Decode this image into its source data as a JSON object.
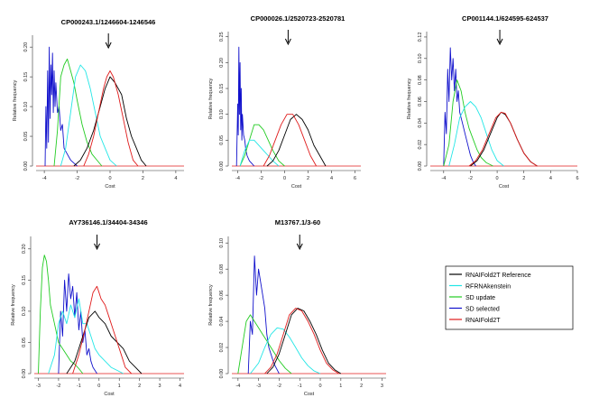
{
  "figure": {
    "legend_title": ""
  },
  "legend": [
    {
      "label": "RNAIFold2T Reference",
      "color": "#000000"
    },
    {
      "label": "RFRNAkenstein",
      "color": "#22e6e6"
    },
    {
      "label": "SD update",
      "color": "#22cc22"
    },
    {
      "label": "SD selected",
      "color": "#1111cc"
    },
    {
      "label": "RNAIFold2T",
      "color": "#e01b1b"
    }
  ],
  "chart_data": [
    {
      "type": "line",
      "title": "CP000243.1/1246604-1246546",
      "xlabel": "Cost",
      "ylabel": "Relative frequency",
      "xlim": [
        -4.5,
        4.5
      ],
      "ylim": [
        0,
        0.22
      ],
      "xticks": [
        -4,
        -2,
        0,
        2,
        4
      ],
      "yticks": [
        0.0,
        0.05,
        0.1,
        0.15,
        0.2
      ],
      "xtick_labels": [
        "-4",
        "-2",
        "0",
        "2",
        "4"
      ],
      "ytick_labels": [
        "0.00",
        "0.05",
        "0.10",
        "0.15",
        "0.20"
      ],
      "arrow_x": -0.1,
      "series": [
        {
          "name": "RNAIFold2T Reference",
          "x": [
            -2.2,
            -1.8,
            -1.4,
            -1.0,
            -0.6,
            -0.3,
            0.0,
            0.3,
            0.7,
            1.0,
            1.3,
            1.6,
            1.9,
            2.2
          ],
          "y": [
            0,
            0.01,
            0.03,
            0.06,
            0.1,
            0.13,
            0.15,
            0.14,
            0.12,
            0.08,
            0.05,
            0.03,
            0.01,
            0
          ]
        },
        {
          "name": "RFRNAkenstein",
          "x": [
            -3.0,
            -2.7,
            -2.4,
            -2.1,
            -1.8,
            -1.5,
            -1.2,
            -0.9,
            -0.6,
            -0.3,
            0.0,
            0.4
          ],
          "y": [
            0,
            0.03,
            0.09,
            0.15,
            0.17,
            0.16,
            0.13,
            0.09,
            0.05,
            0.03,
            0.01,
            0
          ]
        },
        {
          "name": "SD update",
          "x": [
            -3.4,
            -3.2,
            -3.0,
            -2.8,
            -2.6,
            -2.4,
            -2.2,
            -2.0,
            -1.7,
            -1.4,
            -1.1,
            -0.8,
            -0.5
          ],
          "y": [
            0,
            0.06,
            0.15,
            0.17,
            0.18,
            0.16,
            0.14,
            0.11,
            0.07,
            0.04,
            0.02,
            0.01,
            0
          ]
        },
        {
          "name": "SD selected",
          "x": [
            -3.95,
            -3.9,
            -3.85,
            -3.8,
            -3.75,
            -3.7,
            -3.65,
            -3.6,
            -3.55,
            -3.5,
            -3.45,
            -3.4,
            -3.35,
            -3.3,
            -3.2,
            -3.1,
            -3.0,
            -2.9,
            -2.8,
            -2.6,
            -2.4,
            -2.2,
            -2.0
          ],
          "y": [
            0,
            0.1,
            0.03,
            0.16,
            0.04,
            0.2,
            0.08,
            0.17,
            0.12,
            0.19,
            0.09,
            0.16,
            0.1,
            0.14,
            0.09,
            0.1,
            0.06,
            0.07,
            0.03,
            0.02,
            0.01,
            0.005,
            0
          ]
        },
        {
          "name": "RNAIFold2T",
          "x": [
            -1.6,
            -1.3,
            -1.0,
            -0.7,
            -0.4,
            -0.2,
            0.0,
            0.2,
            0.5,
            0.8,
            1.1,
            1.4,
            1.7
          ],
          "y": [
            0,
            0.02,
            0.05,
            0.09,
            0.13,
            0.15,
            0.16,
            0.15,
            0.12,
            0.08,
            0.04,
            0.01,
            0
          ]
        }
      ]
    },
    {
      "type": "line",
      "title": "CP000026.1/2520723-2520781",
      "xlabel": "Cost",
      "ylabel": "Relative frequency",
      "xlim": [
        -4.5,
        6.5
      ],
      "ylim": [
        0,
        0.26
      ],
      "xticks": [
        -4,
        -2,
        0,
        2,
        4,
        6
      ],
      "yticks": [
        0.0,
        0.05,
        0.1,
        0.15,
        0.2,
        0.25
      ],
      "xtick_labels": [
        "-4",
        "-2",
        "0",
        "2",
        "4",
        "6"
      ],
      "ytick_labels": [
        "0.00",
        "0.05",
        "0.10",
        "0.15",
        "0.20",
        "0.25"
      ],
      "arrow_x": 0.3,
      "series": [
        {
          "name": "RNAIFold2T Reference",
          "x": [
            -1.5,
            -1.0,
            -0.5,
            0.0,
            0.5,
            1.0,
            1.5,
            2.0,
            2.5,
            3.0,
            3.5
          ],
          "y": [
            0,
            0.01,
            0.03,
            0.06,
            0.09,
            0.1,
            0.09,
            0.07,
            0.04,
            0.02,
            0
          ]
        },
        {
          "name": "RFRNAkenstein",
          "x": [
            -3.8,
            -3.4,
            -3.0,
            -2.6,
            -2.2,
            -1.8,
            -1.4,
            -1.0,
            -0.5
          ],
          "y": [
            0,
            0.03,
            0.05,
            0.05,
            0.04,
            0.03,
            0.02,
            0.01,
            0
          ]
        },
        {
          "name": "SD update",
          "x": [
            -3.8,
            -3.4,
            -3.0,
            -2.6,
            -2.2,
            -1.8,
            -1.4,
            -1.0,
            -0.5,
            0.0
          ],
          "y": [
            0,
            0.02,
            0.05,
            0.08,
            0.08,
            0.07,
            0.05,
            0.03,
            0.01,
            0
          ]
        },
        {
          "name": "SD selected",
          "x": [
            -4.1,
            -4.0,
            -3.95,
            -3.9,
            -3.85,
            -3.8,
            -3.75,
            -3.7,
            -3.65,
            -3.6,
            -3.5,
            -3.4,
            -3.3,
            -3.2,
            -3.0,
            -2.8,
            -2.6
          ],
          "y": [
            0,
            0.12,
            0.06,
            0.23,
            0.1,
            0.2,
            0.07,
            0.15,
            0.05,
            0.1,
            0.06,
            0.05,
            0.03,
            0.02,
            0.01,
            0.005,
            0
          ]
        },
        {
          "name": "RNAIFold2T",
          "x": [
            -1.8,
            -1.3,
            -0.8,
            -0.3,
            0.2,
            0.7,
            1.2,
            1.7,
            2.2,
            2.7
          ],
          "y": [
            0,
            0.02,
            0.05,
            0.08,
            0.1,
            0.1,
            0.08,
            0.05,
            0.02,
            0
          ]
        }
      ]
    },
    {
      "type": "line",
      "title": "CP001144.1/624595-624537",
      "xlabel": "Cost",
      "ylabel": "Relative frequency",
      "xlim": [
        -5,
        6
      ],
      "ylim": [
        0,
        0.125
      ],
      "xticks": [
        -4,
        -2,
        0,
        2,
        4,
        6
      ],
      "yticks": [
        0.0,
        0.02,
        0.04,
        0.06,
        0.08,
        0.1,
        0.12
      ],
      "xtick_labels": [
        "-4",
        "-2",
        "0",
        "2",
        "4",
        "6"
      ],
      "ytick_labels": [
        "0.00",
        "0.02",
        "0.04",
        "0.06",
        "0.08",
        "0.10",
        "0.12"
      ],
      "arrow_x": 0.2,
      "series": [
        {
          "name": "RNAIFold2T Reference",
          "x": [
            -2.0,
            -1.5,
            -1.0,
            -0.5,
            0.0,
            0.3,
            0.6,
            1.0,
            1.5,
            2.0,
            2.5,
            3.0
          ],
          "y": [
            0,
            0.005,
            0.015,
            0.03,
            0.045,
            0.05,
            0.048,
            0.04,
            0.025,
            0.012,
            0.004,
            0
          ]
        },
        {
          "name": "RFRNAkenstein",
          "x": [
            -3.6,
            -3.2,
            -2.8,
            -2.4,
            -2.0,
            -1.6,
            -1.2,
            -0.8,
            -0.4,
            0.0,
            0.5
          ],
          "y": [
            0,
            0.02,
            0.045,
            0.055,
            0.06,
            0.055,
            0.045,
            0.03,
            0.015,
            0.005,
            0
          ]
        },
        {
          "name": "SD update",
          "x": [
            -4.0,
            -3.6,
            -3.3,
            -3.0,
            -2.7,
            -2.4,
            -2.1,
            -1.8,
            -1.5,
            -1.2,
            -0.8,
            -0.3
          ],
          "y": [
            0,
            0.02,
            0.06,
            0.08,
            0.07,
            0.05,
            0.035,
            0.025,
            0.015,
            0.008,
            0.003,
            0
          ]
        },
        {
          "name": "SD selected",
          "x": [
            -4.0,
            -3.9,
            -3.8,
            -3.7,
            -3.6,
            -3.5,
            -3.4,
            -3.3,
            -3.2,
            -3.1,
            -3.0,
            -2.9,
            -2.8,
            -2.6,
            -2.4,
            -2.2,
            -2.0,
            -1.8,
            -1.6
          ],
          "y": [
            0,
            0.05,
            0.03,
            0.09,
            0.06,
            0.11,
            0.08,
            0.1,
            0.07,
            0.09,
            0.06,
            0.07,
            0.05,
            0.04,
            0.03,
            0.02,
            0.01,
            0.004,
            0
          ]
        },
        {
          "name": "RNAIFold2T",
          "x": [
            -2.1,
            -1.6,
            -1.1,
            -0.6,
            -0.1,
            0.3,
            0.6,
            1.0,
            1.5,
            2.0,
            2.5,
            3.0
          ],
          "y": [
            0,
            0.005,
            0.015,
            0.03,
            0.045,
            0.05,
            0.049,
            0.04,
            0.025,
            0.012,
            0.004,
            0
          ]
        }
      ]
    },
    {
      "type": "line",
      "title": "AY736146.1/34404-34346",
      "xlabel": "Cost",
      "ylabel": "Relative frequency",
      "xlim": [
        -3.2,
        4.2
      ],
      "ylim": [
        0,
        0.22
      ],
      "xticks": [
        -3,
        -2,
        -1,
        0,
        1,
        2,
        3,
        4
      ],
      "yticks": [
        0.0,
        0.05,
        0.1,
        0.15,
        0.2
      ],
      "xtick_labels": [
        "-3",
        "-2",
        "-1",
        "0",
        "1",
        "2",
        "3",
        "4"
      ],
      "ytick_labels": [
        "0.00",
        "0.05",
        "0.10",
        "0.15",
        "0.20"
      ],
      "arrow_x": -0.1,
      "series": [
        {
          "name": "RNAIFold2T Reference",
          "x": [
            -1.6,
            -1.2,
            -0.8,
            -0.5,
            -0.2,
            0.0,
            0.3,
            0.6,
            0.9,
            1.2,
            1.5,
            1.8,
            2.1
          ],
          "y": [
            0,
            0.02,
            0.06,
            0.09,
            0.1,
            0.09,
            0.08,
            0.06,
            0.05,
            0.04,
            0.02,
            0.01,
            0
          ]
        },
        {
          "name": "RFRNAkenstein",
          "x": [
            -2.5,
            -2.2,
            -2.0,
            -1.8,
            -1.6,
            -1.4,
            -1.2,
            -1.0,
            -0.8,
            -0.6,
            -0.4,
            -0.2,
            0.0,
            0.3,
            0.6,
            0.9,
            1.2
          ],
          "y": [
            0,
            0.03,
            0.08,
            0.1,
            0.08,
            0.11,
            0.09,
            0.12,
            0.08,
            0.08,
            0.06,
            0.04,
            0.03,
            0.02,
            0.01,
            0.005,
            0
          ]
        },
        {
          "name": "SD update",
          "x": [
            -3.0,
            -2.9,
            -2.8,
            -2.7,
            -2.6,
            -2.5,
            -2.4,
            -2.2,
            -2.0,
            -1.8,
            -1.6,
            -1.4,
            -1.2,
            -1.0,
            -0.8
          ],
          "y": [
            0,
            0.1,
            0.17,
            0.19,
            0.18,
            0.15,
            0.11,
            0.08,
            0.05,
            0.04,
            0.03,
            0.02,
            0.015,
            0.008,
            0
          ]
        },
        {
          "name": "SD selected",
          "x": [
            -2.0,
            -1.9,
            -1.8,
            -1.7,
            -1.6,
            -1.5,
            -1.4,
            -1.3,
            -1.2,
            -1.1,
            -1.0,
            -0.9,
            -0.8,
            -0.7,
            -0.6,
            -0.5,
            -0.4,
            -0.3,
            -0.2,
            -0.1
          ],
          "y": [
            0,
            0.1,
            0.06,
            0.15,
            0.1,
            0.16,
            0.12,
            0.14,
            0.09,
            0.13,
            0.07,
            0.1,
            0.05,
            0.07,
            0.03,
            0.04,
            0.02,
            0.01,
            0.005,
            0
          ]
        },
        {
          "name": "RNAIFold2T",
          "x": [
            -1.3,
            -1.0,
            -0.7,
            -0.5,
            -0.3,
            -0.1,
            0.0,
            0.1,
            0.3,
            0.5,
            0.7,
            0.9,
            1.1,
            1.3,
            1.6
          ],
          "y": [
            0,
            0.03,
            0.07,
            0.1,
            0.13,
            0.14,
            0.13,
            0.12,
            0.11,
            0.09,
            0.07,
            0.05,
            0.03,
            0.01,
            0
          ]
        }
      ]
    },
    {
      "type": "line",
      "title": "M13767.1/3-60",
      "xlabel": "Cost",
      "ylabel": "Relative frequency",
      "xlim": [
        -4.3,
        3.2
      ],
      "ylim": [
        0,
        0.105
      ],
      "xticks": [
        -4,
        -3,
        -2,
        -1,
        0,
        1,
        2,
        3
      ],
      "yticks": [
        0.0,
        0.02,
        0.04,
        0.06,
        0.08,
        0.1
      ],
      "xtick_labels": [
        "-4",
        "-3",
        "-2",
        "-1",
        "0",
        "1",
        "2",
        "3"
      ],
      "ytick_labels": [
        "0.00",
        "0.02",
        "0.04",
        "0.06",
        "0.08",
        "0.10"
      ],
      "arrow_x": -1.0,
      "series": [
        {
          "name": "RNAIFold2T Reference",
          "x": [
            -2.6,
            -2.3,
            -2.0,
            -1.7,
            -1.4,
            -1.1,
            -0.8,
            -0.5,
            -0.2,
            0.1,
            0.4,
            0.7,
            1.0
          ],
          "y": [
            0,
            0.005,
            0.015,
            0.03,
            0.045,
            0.05,
            0.048,
            0.04,
            0.03,
            0.018,
            0.008,
            0.003,
            0
          ]
        },
        {
          "name": "RFRNAkenstein",
          "x": [
            -3.4,
            -3.0,
            -2.7,
            -2.4,
            -2.1,
            -1.8,
            -1.5,
            -1.2,
            -0.9,
            -0.6,
            -0.3,
            0.0
          ],
          "y": [
            0,
            0.008,
            0.02,
            0.03,
            0.035,
            0.034,
            0.028,
            0.02,
            0.012,
            0.006,
            0.002,
            0
          ]
        },
        {
          "name": "SD update",
          "x": [
            -4.0,
            -3.8,
            -3.6,
            -3.4,
            -3.2,
            -3.0,
            -2.8,
            -2.6,
            -2.4,
            -2.2,
            -2.0,
            -1.7,
            -1.4
          ],
          "y": [
            0,
            0.02,
            0.04,
            0.045,
            0.04,
            0.035,
            0.03,
            0.025,
            0.02,
            0.015,
            0.01,
            0.004,
            0
          ]
        },
        {
          "name": "SD selected",
          "x": [
            -3.5,
            -3.4,
            -3.3,
            -3.2,
            -3.1,
            -3.0,
            -2.9,
            -2.8,
            -2.7,
            -2.6,
            -2.5,
            -2.4,
            -2.3,
            -2.2,
            -2.1,
            -2.0
          ],
          "y": [
            0,
            0.04,
            0.03,
            0.09,
            0.06,
            0.08,
            0.07,
            0.06,
            0.05,
            0.03,
            0.02,
            0.015,
            0.01,
            0.006,
            0.003,
            0
          ]
        },
        {
          "name": "RNAIFold2T",
          "x": [
            -2.7,
            -2.4,
            -2.1,
            -1.8,
            -1.5,
            -1.2,
            -0.9,
            -0.6,
            -0.3,
            0.0,
            0.3,
            0.6,
            0.9
          ],
          "y": [
            0,
            0.005,
            0.015,
            0.03,
            0.045,
            0.05,
            0.048,
            0.04,
            0.03,
            0.018,
            0.008,
            0.003,
            0
          ]
        }
      ]
    }
  ]
}
